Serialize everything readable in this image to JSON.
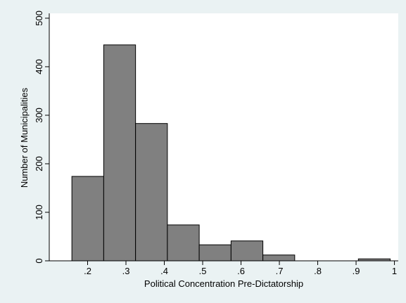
{
  "chart_data": {
    "type": "bar",
    "subtype": "histogram",
    "xlabel": "Political Concentration Pre-Dictatorship",
    "ylabel": "Number of Municipalities",
    "x_ticks": [
      0.2,
      0.3,
      0.4,
      0.5,
      0.6,
      0.7,
      0.8,
      0.9,
      1.0
    ],
    "x_tick_labels": [
      ".2",
      ".3",
      ".4",
      ".5",
      ".6",
      ".7",
      ".8",
      ".9",
      "1"
    ],
    "y_ticks": [
      0,
      100,
      200,
      300,
      400,
      500
    ],
    "y_tick_labels": [
      "0",
      "100",
      "200",
      "300",
      "400",
      "500"
    ],
    "xlim": [
      0.1,
      1.01
    ],
    "ylim": [
      0,
      510
    ],
    "bin_edges": [
      0.159,
      0.242,
      0.325,
      0.408,
      0.491,
      0.574,
      0.657,
      0.74,
      0.823,
      0.906,
      0.989
    ],
    "values": [
      174,
      445,
      283,
      74,
      33,
      41,
      12,
      0,
      0,
      4
    ],
    "bar_color": "#808080",
    "bar_edge_color": "#000000",
    "plot_background": "#ffffff",
    "page_background": "#eaf2f3",
    "grid": false
  }
}
